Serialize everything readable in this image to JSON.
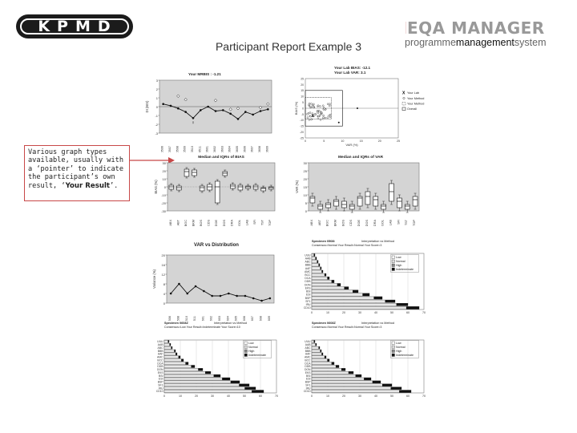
{
  "header": {
    "kpmd_logo_text": "KPMD",
    "report_title": "Participant Report Example 3",
    "eqa_brand": "EQA MANAGER",
    "eqa_tag_part1": "programme",
    "eqa_tag_part2": "management",
    "eqa_tag_part3": "system"
  },
  "callout": {
    "text_before": "Various graph types available, usually with a ‘pointer’ to indicate the participant’s own result, ‘",
    "text_bold": "Your Result",
    "text_after": "’."
  },
  "colors": {
    "callout_border": "#c84848",
    "pointer_arrow": "#c84848",
    "chart_bg": "#d4d4d4",
    "brand_red": "#b01c1c"
  },
  "charts": [
    {
      "id": "mrbis",
      "chart_data": {
        "type": "line",
        "title": "Your MRBIS : -1.21",
        "ylabel": "DI (BIS)",
        "ylim": [
          -3,
          3
        ],
        "yticks": [
          "3",
          "2",
          "1",
          "0",
          "-1",
          "-2",
          "-3"
        ],
        "categories": [
          "0506",
          "0507",
          "0508",
          "0509",
          "0510",
          "0511",
          "0601",
          "0602",
          "0603",
          "0604",
          "0605",
          "0606",
          "0607",
          "0608",
          "0609"
        ],
        "values": [
          0.3,
          0.1,
          -0.2,
          -0.6,
          -1.3,
          -0.4,
          0.0,
          -0.5,
          -0.4,
          -0.8,
          -1.4,
          -0.6,
          -0.9,
          -0.5,
          -0.3
        ]
      }
    },
    {
      "id": "bias-var",
      "chart_data": {
        "type": "scatter",
        "title": "Your Lab BIAS: -12.1",
        "subtitle": "Your Lab VAR: 3.1",
        "xlabel": "VAR (%)",
        "ylabel": "BIAS (%)",
        "xlim": [
          0,
          25
        ],
        "ylim": [
          -25,
          25
        ],
        "xticks": [
          "0",
          "5",
          "10",
          "15",
          "20",
          "25"
        ],
        "yticks": [
          "25",
          "20",
          "15",
          "10",
          "5",
          "0",
          "-5",
          "-10",
          "-15",
          "-20",
          "-25"
        ],
        "legend": [
          "Your Lab",
          "Your Method",
          "Your Method",
          "Overall"
        ],
        "your_lab": {
          "x": 2,
          "y": -6
        }
      }
    },
    {
      "id": "bias-box",
      "chart_data": {
        "type": "box",
        "title": "Median and IQRs of BIAS",
        "ylabel": "BIAS (%)",
        "ylim": [
          -30,
          30
        ],
        "yticks": [
          "30",
          "20",
          "10",
          "0",
          "-10",
          "-20",
          "-30"
        ],
        "categories": [
          "ABX",
          "ABT",
          "BGC",
          "BKM",
          "BOS",
          "CDS",
          "DOE",
          "DOS",
          "DRA",
          "GOL",
          "LAB",
          "SFI",
          "TST",
          "TOP"
        ],
        "boxes": [
          [
            -3,
            -1,
            0,
            2
          ],
          [
            -4,
            -2,
            -1,
            1
          ],
          [
            13,
            16,
            19,
            22
          ],
          [
            14,
            16,
            18,
            21
          ],
          [
            -5,
            -3,
            -1,
            1
          ],
          [
            -4,
            -2,
            0,
            3
          ],
          [
            -20,
            -5,
            0,
            7
          ],
          [
            14,
            16,
            17,
            19
          ],
          [
            -2,
            0,
            1,
            3
          ],
          [
            -4,
            -1,
            0,
            2
          ],
          [
            -2,
            -1,
            0,
            1
          ],
          [
            -3,
            -1,
            0,
            2
          ],
          [
            -5,
            -3,
            -2,
            -1
          ],
          [
            -3,
            -2,
            -1,
            0
          ]
        ]
      }
    },
    {
      "id": "var-box",
      "chart_data": {
        "type": "box",
        "title": "Median and IQRs of VAR",
        "ylabel": "VAR (%)",
        "ylim": [
          0,
          30
        ],
        "yticks": [
          "30",
          "25",
          "20",
          "15",
          "10",
          "5",
          "0"
        ],
        "categories": [
          "ABX",
          "ABT",
          "BGC",
          "BKM",
          "BOS",
          "CDS",
          "DOE",
          "DOS",
          "DRA",
          "GOL",
          "LAB",
          "SFI",
          "TST",
          "TOP"
        ],
        "boxes": [
          [
            5,
            6,
            8,
            9
          ],
          [
            1,
            2,
            3,
            4
          ],
          [
            2,
            3,
            4,
            5
          ],
          [
            3,
            5,
            6,
            7
          ],
          [
            2,
            3,
            4,
            6
          ],
          [
            1,
            2,
            3,
            4
          ],
          [
            3,
            5,
            8,
            9
          ],
          [
            4,
            6,
            9,
            12
          ],
          [
            3,
            5,
            7,
            9
          ],
          [
            1,
            2,
            3,
            4
          ],
          [
            6,
            9,
            12,
            17
          ],
          [
            2,
            4,
            6,
            8
          ],
          [
            1,
            2,
            3,
            4
          ],
          [
            3,
            5,
            7,
            9
          ]
        ]
      }
    },
    {
      "id": "var-dist",
      "chart_data": {
        "type": "line",
        "title": "VAR vs Distribution",
        "ylabel": "Variance (%)",
        "ylim": [
          0,
          20
        ],
        "yticks": [
          "20",
          "16",
          "12",
          "8",
          "4",
          "0"
        ],
        "categories": [
          "0506",
          "0508",
          "0510",
          "0511",
          "0601",
          "0602",
          "0603",
          "0604",
          "0605",
          "0606",
          "0607",
          "0608",
          "0609"
        ],
        "values": [
          4,
          8,
          4,
          7,
          5,
          3,
          3,
          4,
          3,
          3,
          2,
          1,
          2
        ]
      }
    },
    {
      "id": "interp-1",
      "chart_data": {
        "type": "bar",
        "title": "Specimen 0508i",
        "subtitle": "Interpretation vs Method",
        "subtitle2": "Consensus=Normal  Your Result=Normal  Your Score=3",
        "xlim": [
          0,
          70
        ],
        "xticks": [
          "0",
          "10",
          "20",
          "30",
          "40",
          "50",
          "60",
          "70"
        ],
        "legend": [
          "Low",
          "Normal",
          "High",
          "Indeterminate"
        ],
        "categories": [
          "UUU",
          "AAB",
          "ABC",
          "BBB",
          "AAF",
          "AMC",
          "BCC",
          "DCA",
          "DDB",
          "DON",
          "EKS",
          "BSI",
          "ESI",
          "BSP",
          "SF1",
          "IRU",
          "CD10"
        ],
        "values": [
          2,
          3,
          4,
          5,
          6,
          7,
          9,
          11,
          14,
          18,
          23,
          29,
          36,
          44,
          52,
          60,
          67
        ]
      }
    },
    {
      "id": "interp-2",
      "chart_data": {
        "type": "bar",
        "title": "Specimen 0608Z",
        "subtitle": "Interpretation vs Method",
        "subtitle2": "Consensus=Low  Your Result=Indeterminate  Your Score=10",
        "xlim": [
          0,
          70
        ],
        "xticks": [
          "0",
          "10",
          "20",
          "30",
          "40",
          "50",
          "60",
          "70"
        ],
        "legend": [
          "Low",
          "Normal",
          "High",
          "Indeterminate"
        ],
        "categories": [
          "UUU",
          "AAB",
          "ABC",
          "BBB",
          "AAF",
          "AMC",
          "BCC",
          "DCA",
          "DDB",
          "DON",
          "EKS",
          "BSI",
          "ESI",
          "BSP",
          "SF1",
          "IRU",
          "CD10"
        ],
        "values": [
          3,
          4,
          5,
          7,
          8,
          10,
          12,
          15,
          19,
          24,
          29,
          35,
          41,
          47,
          53,
          57,
          62
        ]
      }
    },
    {
      "id": "interp-3",
      "chart_data": {
        "type": "bar",
        "title": "Specimen 0608Z",
        "subtitle": "Interpretation vs Method",
        "subtitle2": "Consensus=Normal  Your Result=Normal  Your Score=3",
        "xlim": [
          0,
          70
        ],
        "xticks": [
          "0",
          "10",
          "20",
          "30",
          "40",
          "50",
          "60",
          "70"
        ],
        "legend": [
          "Low",
          "Normal",
          "High",
          "Indeterminate"
        ],
        "categories": [
          "UUU",
          "AAB",
          "ABC",
          "BBB",
          "AAF",
          "AMC",
          "BCC",
          "DCA",
          "DDB",
          "DON",
          "EKS",
          "BSI",
          "ESI",
          "BSP",
          "SF1",
          "IRU",
          "CD10"
        ],
        "values": [
          2,
          3,
          5,
          6,
          7,
          9,
          11,
          14,
          17,
          21,
          26,
          31,
          37,
          43,
          50,
          56,
          62
        ]
      }
    }
  ]
}
